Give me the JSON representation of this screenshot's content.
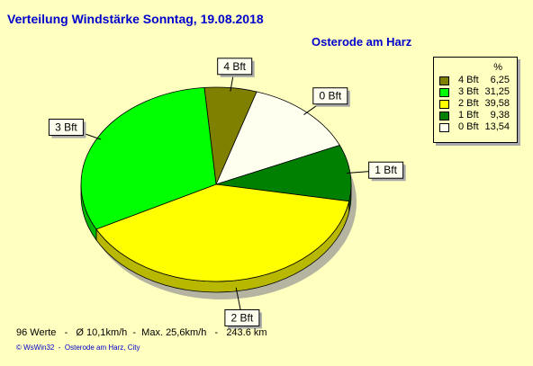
{
  "title": "Verteilung Windstärke  Sonntag, 19.08.2018",
  "location": "Osterode am Harz",
  "footer": "96 Werte   -   Ø 10,1km/h  -  Max. 25,6km/h   -   243.6 km",
  "credit": "© WsWin32  -  Osterode am Harz, City",
  "chart_data": {
    "type": "pie",
    "title": "Verteilung Windstärke  Sonntag, 19.08.2018",
    "subtitle": "Osterode am Harz",
    "legend_position": "right",
    "legend_header": "%",
    "slices": [
      {
        "label": "4 Bft",
        "value": 6.25,
        "value_text": "6,25",
        "color": "#808000"
      },
      {
        "label": "0 Bft",
        "value": 13.54,
        "value_text": "13,54",
        "color": "#fffff0"
      },
      {
        "label": "1 Bft",
        "value": 9.38,
        "value_text": "9,38",
        "color": "#008000"
      },
      {
        "label": "2 Bft",
        "value": 39.58,
        "value_text": "39,58",
        "color": "#ffff00"
      },
      {
        "label": "3 Bft",
        "value": 31.25,
        "value_text": "31,25",
        "color": "#00ff00"
      }
    ],
    "legend_order": [
      "4 Bft",
      "3 Bft",
      "2 Bft",
      "1 Bft",
      "0 Bft"
    ]
  }
}
